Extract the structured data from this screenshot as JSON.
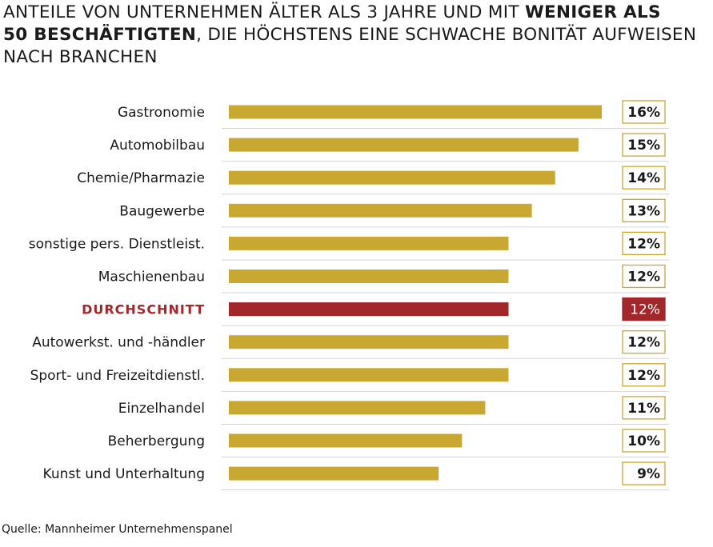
{
  "title": {
    "part1": "ANTEILE VON UNTERNEHMEN ÄLTER ALS 3 JAHRE UND MIT ",
    "bold1": "WENIGER ALS",
    "bold2": "50 BESCHÄFTIGTEN",
    "part2": ", DIE HÖCHSTENS EINE SCHWACHE BONITÄT AUFWEISEN",
    "part3": "NACH BRANCHEN"
  },
  "source": "Quelle: Mannheimer Unternehmenspanel",
  "colors": {
    "bar": "#c9a832",
    "highlight": "#a3262a",
    "grid": "#d4d4d4",
    "label_highlight": "#a3262a"
  },
  "chart_data": {
    "type": "bar",
    "orientation": "horizontal",
    "title": "Anteile von Unternehmen älter als 3 Jahre und mit weniger als 50 Beschäftigten, die höchstens eine schwache Bonität aufweisen nach Branchen",
    "unit": "%",
    "xlim": [
      0,
      16
    ],
    "highlight": "DURCHSCHNITT",
    "categories": [
      "Gastronomie",
      "Automobilbau",
      "Chemie/Pharmazie",
      "Baugewerbe",
      "sonstige pers. Dienstleist.",
      "Maschienenbau",
      "DURCHSCHNITT",
      "Autowerkst. und -händler",
      "Sport- und Freizeitdienstl.",
      "Einzelhandel",
      "Beherbergung",
      "Kunst und Unterhaltung"
    ],
    "values": [
      16,
      15,
      14,
      13,
      12,
      12,
      12,
      12,
      12,
      11,
      10,
      9
    ],
    "labels": [
      "16%",
      "15%",
      "14%",
      "13%",
      "12%",
      "12%",
      "12%",
      "12%",
      "12%",
      "11%",
      "10%",
      "9%"
    ]
  }
}
